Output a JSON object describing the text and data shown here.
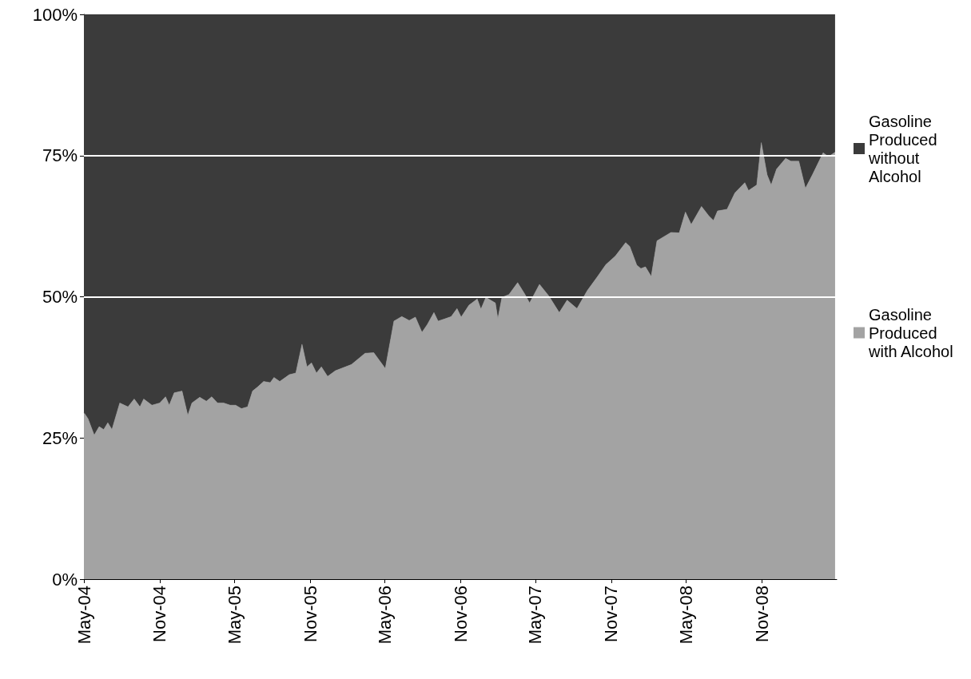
{
  "chart_data": {
    "type": "area",
    "stacked": true,
    "x": [
      "2004-05-01",
      "2004-05-11",
      "2004-05-26",
      "2004-06-07",
      "2004-06-18",
      "2004-06-28",
      "2004-07-08",
      "2004-07-27",
      "2004-08-16",
      "2004-08-31",
      "2004-09-14",
      "2004-09-23",
      "2004-10-13",
      "2004-11-01",
      "2004-11-15",
      "2004-11-24",
      "2004-12-06",
      "2004-12-25",
      "2005-01-08",
      "2005-01-18",
      "2005-02-06",
      "2005-02-22",
      "2005-03-07",
      "2005-03-21",
      "2005-04-05",
      "2005-04-21",
      "2005-05-04",
      "2005-05-18",
      "2005-06-02",
      "2005-06-14",
      "2005-06-26",
      "2005-07-11",
      "2005-07-27",
      "2005-08-05",
      "2005-08-19",
      "2005-09-11",
      "2005-09-27",
      "2005-10-12",
      "2005-10-24",
      "2005-11-04",
      "2005-11-16",
      "2005-11-28",
      "2005-12-13",
      "2006-01-01",
      "2006-02-09",
      "2006-03-14",
      "2006-04-04",
      "2006-05-02",
      "2006-05-23",
      "2006-06-11",
      "2006-06-29",
      "2006-07-14",
      "2006-07-30",
      "2006-08-12",
      "2006-08-28",
      "2006-09-07",
      "2006-09-24",
      "2006-10-09",
      "2006-10-23",
      "2006-11-02",
      "2006-11-21",
      "2006-12-11",
      "2006-12-20",
      "2007-01-01",
      "2007-01-24",
      "2007-01-30",
      "2007-02-09",
      "2007-02-26",
      "2007-03-19",
      "2007-04-06",
      "2007-04-17",
      "2007-05-11",
      "2007-06-03",
      "2007-06-28",
      "2007-07-17",
      "2007-08-10",
      "2007-09-04",
      "2007-09-29",
      "2007-10-19",
      "2007-11-11",
      "2007-12-06",
      "2007-12-16",
      "2008-01-02",
      "2008-01-12",
      "2008-01-23",
      "2008-02-06",
      "2008-02-20",
      "2008-03-25",
      "2008-04-14",
      "2008-04-29",
      "2008-05-13",
      "2008-06-07",
      "2008-06-25",
      "2008-07-06",
      "2008-07-16",
      "2008-08-08",
      "2008-08-27",
      "2008-09-20",
      "2008-09-29",
      "2008-10-19",
      "2008-10-30",
      "2008-11-13",
      "2008-11-23",
      "2008-12-06",
      "2008-12-28",
      "2009-01-10",
      "2009-01-29",
      "2009-02-14",
      "2009-03-03",
      "2009-03-29",
      "2009-04-11",
      "2009-04-27"
    ],
    "series": [
      {
        "name": "Gasoline Produced with Alcohol",
        "color": "#a3a3a3",
        "values": [
          29.5,
          28.4,
          25.5,
          27,
          26.5,
          27.7,
          26.5,
          31.2,
          30.5,
          31.9,
          30.5,
          31.9,
          30.8,
          31.2,
          32.3,
          30.8,
          33,
          33.3,
          29,
          31.2,
          32.2,
          31.5,
          32.3,
          31.2,
          31.2,
          30.8,
          30.8,
          30.2,
          30.5,
          33.3,
          34,
          35,
          34.8,
          35.7,
          35,
          36.2,
          36.5,
          41.6,
          37.6,
          38.3,
          36.5,
          37.6,
          35.9,
          36.9,
          38,
          40,
          40.1,
          37.3,
          45.7,
          46.5,
          45.8,
          46.4,
          43.7,
          45.1,
          47.2,
          45.7,
          46.1,
          46.5,
          47.9,
          46.4,
          48.5,
          49.6,
          47.8,
          49.9,
          48.9,
          46.1,
          49.9,
          50.4,
          52.5,
          50.4,
          48.9,
          52.2,
          50.1,
          47.2,
          49.4,
          47.9,
          51.1,
          53.6,
          55.7,
          57.2,
          59.6,
          58.9,
          55.6,
          55,
          55.3,
          53.6,
          59.9,
          61.4,
          61.3,
          65,
          62.8,
          66,
          64.3,
          63.5,
          65.2,
          65.5,
          68.4,
          70.2,
          68.8,
          69.8,
          77.3,
          71.6,
          69.8,
          72.6,
          74.5,
          74,
          74,
          69.2,
          71.6,
          75.5,
          74.8,
          75.6
        ]
      },
      {
        "name": "Gasoline Produced without Alcohol",
        "color": "#3b3b3b",
        "values": [
          70.5,
          71.6,
          74.5,
          73,
          73.5,
          72.3,
          73.5,
          68.8,
          69.5,
          68.1,
          69.5,
          68.1,
          69.2,
          68.8,
          67.7,
          69.2,
          67,
          66.7,
          71,
          68.8,
          67.8,
          68.5,
          67.7,
          68.8,
          68.8,
          69.2,
          69.2,
          69.8,
          69.5,
          66.7,
          66,
          65,
          65.2,
          64.3,
          65,
          63.8,
          63.5,
          58.4,
          62.4,
          61.7,
          63.5,
          62.4,
          64.1,
          63.1,
          62,
          60,
          59.9,
          62.7,
          54.3,
          53.5,
          54.2,
          53.6,
          56.3,
          54.9,
          52.8,
          54.3,
          53.9,
          53.5,
          52.1,
          53.6,
          51.5,
          50.4,
          52.2,
          50.1,
          51.1,
          53.9,
          50.1,
          49.6,
          47.5,
          49.6,
          51.1,
          47.8,
          49.9,
          52.8,
          50.6,
          52.1,
          48.9,
          46.4,
          44.3,
          42.8,
          40.4,
          41.1,
          44.4,
          45,
          44.7,
          46.4,
          40.1,
          38.6,
          38.7,
          35,
          37.2,
          34,
          35.7,
          36.5,
          34.8,
          34.5,
          31.6,
          29.8,
          31.2,
          30.2,
          22.7,
          28.4,
          30.2,
          27.4,
          25.5,
          26,
          26,
          30.8,
          28.4,
          24.5,
          25.2,
          24.4
        ]
      }
    ],
    "xlim": [
      "2004-05-01",
      "2009-05-01"
    ],
    "xticks": [
      {
        "value": "2004-05-01",
        "label": "May-04"
      },
      {
        "value": "2004-11-01",
        "label": "Nov-04"
      },
      {
        "value": "2005-05-01",
        "label": "May-05"
      },
      {
        "value": "2005-11-01",
        "label": "Nov-05"
      },
      {
        "value": "2006-05-01",
        "label": "May-06"
      },
      {
        "value": "2006-11-01",
        "label": "Nov-06"
      },
      {
        "value": "2007-05-01",
        "label": "May-07"
      },
      {
        "value": "2007-11-01",
        "label": "Nov-07"
      },
      {
        "value": "2008-05-01",
        "label": "May-08"
      },
      {
        "value": "2008-11-01",
        "label": "Nov-08"
      }
    ],
    "ylim": [
      0,
      100
    ],
    "yticks": [
      {
        "value": 0,
        "label": "0%"
      },
      {
        "value": 25,
        "label": "25%"
      },
      {
        "value": 50,
        "label": "50%"
      },
      {
        "value": 75,
        "label": "75%"
      },
      {
        "value": 100,
        "label": "100%"
      }
    ],
    "ref_lines": [
      {
        "axis": "y",
        "value": 50,
        "color": "#ffffff"
      },
      {
        "axis": "y",
        "value": 75,
        "color": "#ffffff"
      }
    ],
    "legend": "right"
  }
}
